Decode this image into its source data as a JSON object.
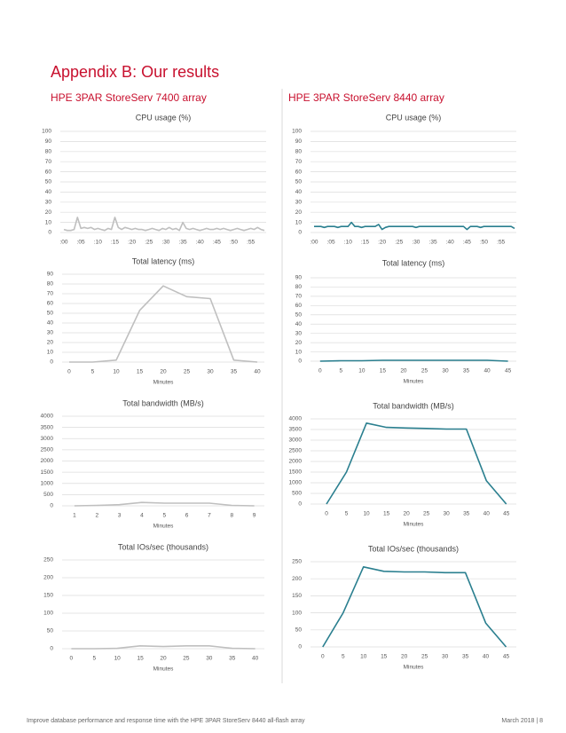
{
  "header": {
    "title": "Appendix B: Our results",
    "left_heading": "HPE 3PAR StoreServ 7400 array",
    "right_heading": "HPE 3PAR StoreServ 8440 array"
  },
  "footer": {
    "text": "Improve database performance and response time with the HPE 3PAR StoreServ 8440 all-flash array",
    "date": "March 2018 | 8"
  },
  "chart_data": [
    {
      "type": "line",
      "title": "CPU usage (%)",
      "color": "#bfbfbf",
      "categories": [
        ":00",
        null,
        null,
        null,
        null,
        ":05",
        null,
        null,
        null,
        null,
        ":10",
        null,
        null,
        null,
        null,
        ":15",
        null,
        null,
        null,
        null,
        ":20",
        null,
        null,
        null,
        null,
        ":25",
        null,
        null,
        null,
        null,
        ":30",
        null,
        null,
        null,
        null,
        ":35",
        null,
        null,
        null,
        null,
        ":40",
        null,
        null,
        null,
        null,
        ":45",
        null,
        null,
        null,
        null,
        ":50",
        null,
        null,
        null,
        null,
        ":55",
        null,
        null,
        null,
        null
      ],
      "values": [
        3,
        2,
        2,
        3,
        15,
        4,
        5,
        4,
        5,
        3,
        4,
        3,
        2,
        4,
        3,
        15,
        5,
        3,
        5,
        4,
        3,
        4,
        3,
        3,
        2,
        3,
        4,
        3,
        2,
        4,
        3,
        5,
        3,
        4,
        2,
        10,
        4,
        3,
        4,
        3,
        2,
        3,
        4,
        3,
        3,
        4,
        3,
        4,
        3,
        2,
        3,
        4,
        3,
        2,
        3,
        4,
        3,
        5,
        3,
        2
      ],
      "ylim": [
        0,
        100
      ],
      "yticks": [
        0,
        10,
        20,
        30,
        40,
        50,
        60,
        70,
        80,
        90,
        100
      ],
      "grid": true
    },
    {
      "type": "line",
      "title": "CPU usage (%)",
      "color": "#2a7f8f",
      "categories": [
        ":00",
        null,
        null,
        null,
        null,
        ":05",
        null,
        null,
        null,
        null,
        ":10",
        null,
        null,
        null,
        null,
        ":15",
        null,
        null,
        null,
        null,
        ":20",
        null,
        null,
        null,
        null,
        ":25",
        null,
        null,
        null,
        null,
        ":30",
        null,
        null,
        null,
        null,
        ":35",
        null,
        null,
        null,
        null,
        ":40",
        null,
        null,
        null,
        null,
        ":45",
        null,
        null,
        null,
        null,
        ":50",
        null,
        null,
        null,
        null,
        ":55",
        null,
        null,
        null,
        null
      ],
      "values": [
        6,
        6,
        6,
        5,
        6,
        6,
        6,
        5,
        6,
        6,
        6,
        10,
        6,
        6,
        5,
        6,
        6,
        6,
        6,
        8,
        3,
        5,
        6,
        6,
        6,
        6,
        6,
        6,
        6,
        6,
        5,
        6,
        6,
        6,
        6,
        6,
        6,
        6,
        6,
        6,
        6,
        6,
        6,
        6,
        6,
        3,
        6,
        6,
        6,
        5,
        6,
        6,
        6,
        6,
        6,
        6,
        6,
        6,
        6,
        4
      ],
      "ylim": [
        0,
        100
      ],
      "yticks": [
        0,
        10,
        20,
        30,
        40,
        50,
        60,
        70,
        80,
        90,
        100
      ],
      "grid": true
    },
    {
      "type": "line",
      "title": "Total latency (ms)",
      "xlabel": "Minutes",
      "color": "#bfbfbf",
      "x": [
        0,
        5,
        10,
        15,
        20,
        25,
        30,
        35,
        40
      ],
      "values": [
        0,
        0,
        2,
        53,
        78,
        67,
        65,
        2,
        0
      ],
      "xlim": [
        -1.5,
        41.5
      ],
      "xticks": [
        0,
        5,
        10,
        15,
        20,
        25,
        30,
        35,
        40
      ],
      "ylim": [
        0,
        90
      ],
      "yticks": [
        0,
        10,
        20,
        30,
        40,
        50,
        60,
        70,
        80,
        90
      ],
      "grid": true
    },
    {
      "type": "line",
      "title": "Total latency (ms)",
      "xlabel": "Minutes",
      "color": "#2a7f8f",
      "x": [
        0,
        5,
        10,
        15,
        20,
        25,
        30,
        35,
        40,
        45
      ],
      "values": [
        0,
        0.5,
        0.5,
        1,
        1,
        1,
        1,
        1,
        1,
        0
      ],
      "xlim": [
        -2.3,
        47
      ],
      "xticks": [
        0,
        5,
        10,
        15,
        20,
        25,
        30,
        35,
        40,
        45
      ],
      "ylim": [
        0,
        90
      ],
      "yticks": [
        0,
        10,
        20,
        30,
        40,
        50,
        60,
        70,
        80,
        90
      ],
      "grid": true
    },
    {
      "type": "line",
      "title": "Total bandwidth (MB/s)",
      "xlabel": "Minutes",
      "color": "#bfbfbf",
      "x": [
        1,
        2,
        3,
        4,
        5,
        6,
        7,
        8,
        9
      ],
      "values": [
        0,
        20,
        50,
        150,
        120,
        120,
        120,
        20,
        0
      ],
      "xlim": [
        0.45,
        9.45
      ],
      "xticks": [
        1,
        2,
        3,
        4,
        5,
        6,
        7,
        8,
        9
      ],
      "ylim": [
        0,
        4000
      ],
      "yticks": [
        0,
        500,
        1000,
        1500,
        2000,
        2500,
        3000,
        3500,
        4000
      ],
      "grid": true
    },
    {
      "type": "line",
      "title": "Total bandwidth (MB/s)",
      "xlabel": "Minutes",
      "color": "#2a7f8f",
      "x": [
        0,
        5,
        10,
        15,
        20,
        25,
        30,
        35,
        40,
        45
      ],
      "values": [
        0,
        1500,
        3800,
        3600,
        3570,
        3550,
        3520,
        3520,
        1100,
        0
      ],
      "xlim": [
        -4,
        47.5
      ],
      "xticks": [
        0,
        5,
        10,
        15,
        20,
        25,
        30,
        35,
        40,
        45
      ],
      "ylim": [
        0,
        4000
      ],
      "yticks": [
        0,
        500,
        1000,
        1500,
        2000,
        2500,
        3000,
        3500,
        4000
      ],
      "grid": true
    },
    {
      "type": "line",
      "title": "Total IOs/sec (thousands)",
      "xlabel": "Minutes",
      "color": "#bfbfbf",
      "x": [
        0,
        5,
        10,
        15,
        20,
        25,
        30,
        35,
        40
      ],
      "values": [
        0,
        0,
        1,
        8,
        6,
        8,
        8,
        1,
        0
      ],
      "xlim": [
        -2,
        42
      ],
      "xticks": [
        0,
        5,
        10,
        15,
        20,
        25,
        30,
        35,
        40
      ],
      "ylim": [
        0,
        250
      ],
      "yticks": [
        0,
        50,
        100,
        150,
        200,
        250
      ],
      "grid": true
    },
    {
      "type": "line",
      "title": "Total IOs/sec (thousands)",
      "xlabel": "Minutes",
      "color": "#2a7f8f",
      "x": [
        0,
        5,
        10,
        15,
        20,
        25,
        30,
        35,
        40,
        45
      ],
      "values": [
        0,
        100,
        235,
        222,
        220,
        220,
        218,
        218,
        70,
        0
      ],
      "xlim": [
        -3,
        47.5
      ],
      "xticks": [
        0,
        5,
        10,
        15,
        20,
        25,
        30,
        35,
        40,
        45
      ],
      "ylim": [
        0,
        250
      ],
      "yticks": [
        0,
        50,
        100,
        150,
        200,
        250
      ],
      "grid": true
    }
  ]
}
